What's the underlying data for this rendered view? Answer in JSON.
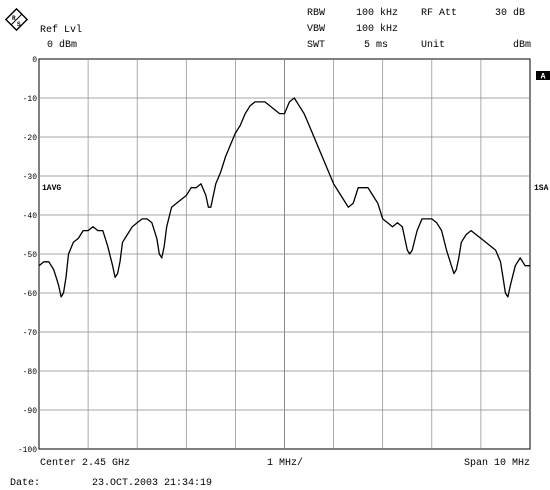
{
  "header": {
    "ref_level_label": "Ref Lvl",
    "ref_level_value": "0 dBm",
    "rbw_label": "RBW",
    "rbw_value": "100 kHz",
    "vbw_label": "VBW",
    "vbw_value": "100 kHz",
    "swt_label": "SWT",
    "swt_value": "5 ms",
    "rf_att_label": "RF Att",
    "rf_att_value": "30 dB",
    "unit_label": "Unit",
    "unit_value": "dBm"
  },
  "markers": {
    "trace_mode_left": "1AVG",
    "trace_mode_right": "1SA",
    "screen_label": "A"
  },
  "footer": {
    "center": "Center 2.45 GHz",
    "div": "1 MHz/",
    "span": "Span 10 MHz",
    "date_label": "Date:",
    "date_value": "23.OCT.2003  21:34:19"
  },
  "chart_data": {
    "type": "line",
    "xlabel": "",
    "ylabel": "",
    "x_unit": "MHz offset from center",
    "xlim": [
      -5,
      5
    ],
    "ylim": [
      -100,
      0
    ],
    "y_ticks": [
      "0",
      "-10",
      "-20",
      "-30",
      "-40",
      "-50",
      "-60",
      "-70",
      "-80",
      "-90",
      "-100"
    ],
    "grid": true,
    "series": [
      {
        "color": "#000000",
        "x": [
          -5.0,
          -4.9,
          -4.8,
          -4.7,
          -4.6,
          -4.55,
          -4.5,
          -4.45,
          -4.4,
          -4.3,
          -4.2,
          -4.1,
          -4.0,
          -3.9,
          -3.8,
          -3.7,
          -3.6,
          -3.5,
          -3.45,
          -3.4,
          -3.35,
          -3.3,
          -3.2,
          -3.1,
          -3.0,
          -2.9,
          -2.8,
          -2.7,
          -2.6,
          -2.55,
          -2.5,
          -2.45,
          -2.4,
          -2.3,
          -2.2,
          -2.1,
          -2.0,
          -1.9,
          -1.8,
          -1.7,
          -1.6,
          -1.55,
          -1.5,
          -1.45,
          -1.4,
          -1.3,
          -1.2,
          -1.1,
          -1.0,
          -0.9,
          -0.8,
          -0.7,
          -0.6,
          -0.5,
          -0.4,
          -0.3,
          -0.2,
          -0.1,
          0.0,
          0.1,
          0.2,
          0.3,
          0.4,
          0.5,
          0.6,
          0.7,
          0.8,
          0.9,
          1.0,
          1.1,
          1.2,
          1.3,
          1.4,
          1.45,
          1.5,
          1.55,
          1.6,
          1.7,
          1.8,
          1.9,
          2.0,
          2.1,
          2.2,
          2.3,
          2.4,
          2.45,
          2.5,
          2.55,
          2.6,
          2.7,
          2.8,
          2.9,
          3.0,
          3.1,
          3.2,
          3.3,
          3.4,
          3.45,
          3.5,
          3.55,
          3.6,
          3.7,
          3.8,
          3.9,
          4.0,
          4.1,
          4.2,
          4.3,
          4.4,
          4.45,
          4.5,
          4.55,
          4.6,
          4.7,
          4.8,
          4.9,
          5.0
        ],
        "y": [
          -53,
          -52,
          -52,
          -54,
          -58,
          -61,
          -60,
          -56,
          -50,
          -47,
          -46,
          -44,
          -44,
          -43,
          -44,
          -44,
          -48,
          -53,
          -56,
          -55,
          -52,
          -47,
          -45,
          -43,
          -42,
          -41,
          -41,
          -42,
          -46,
          -50,
          -51,
          -48,
          -43,
          -38,
          -37,
          -36,
          -35,
          -33,
          -33,
          -32,
          -35,
          -38,
          -38,
          -35,
          -32,
          -29,
          -25,
          -22,
          -19,
          -17,
          -14,
          -12,
          -11,
          -11,
          -11,
          -12,
          -13,
          -14,
          -14,
          -11,
          -10,
          -12,
          -14,
          -17,
          -20,
          -23,
          -26,
          -29,
          -32,
          -34,
          -36,
          -38,
          -37,
          -35,
          -33,
          -33,
          -33,
          -33,
          -35,
          -37,
          -41,
          -42,
          -43,
          -42,
          -43,
          -46,
          -49,
          -50,
          -49,
          -44,
          -41,
          -41,
          -41,
          -42,
          -44,
          -49,
          -53,
          -55,
          -54,
          -51,
          -47,
          -45,
          -44,
          -45,
          -46,
          -47,
          -48,
          -49,
          -52,
          -56,
          -60,
          -61,
          -58,
          -53,
          -51,
          -53,
          -53
        ]
      }
    ]
  }
}
